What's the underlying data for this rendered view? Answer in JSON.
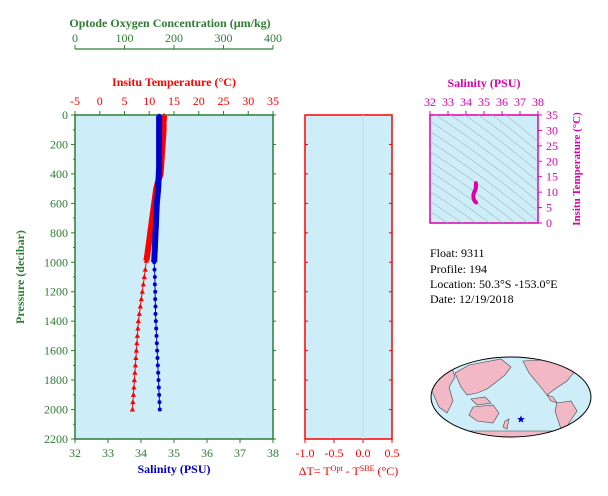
{
  "colors": {
    "green": "#2e7d32",
    "red": "#ff0000",
    "blue": "#0000cc",
    "magenta": "#dd00aa",
    "panel": "#cdeef8",
    "land": "#f2b8c6"
  },
  "chart_data": [
    {
      "type": "line",
      "panel": "main-profile",
      "top_axis_oxygen": {
        "label": "Optode Oxygen Concentration (µm/kg)",
        "range": [
          0,
          400
        ],
        "ticks": [
          "0",
          "100",
          "200",
          "300",
          "400"
        ]
      },
      "top_axis_temperature": {
        "label": "Insitu Temperature (°C)",
        "range": [
          -5,
          35
        ],
        "ticks": [
          "-5",
          "0",
          "5",
          "10",
          "15",
          "20",
          "25",
          "30",
          "35"
        ]
      },
      "bottom_axis_salinity": {
        "label": "Salinity (PSU)",
        "range": [
          32,
          38
        ],
        "ticks": [
          "32",
          "33",
          "34",
          "35",
          "36",
          "37",
          "38"
        ]
      },
      "y_axis": {
        "label": "Pressure (decibar)",
        "range": [
          0,
          2200
        ],
        "inverted": true,
        "ticks": [
          "0",
          "200",
          "400",
          "600",
          "800",
          "1000",
          "1200",
          "1400",
          "1600",
          "1800",
          "2000",
          "2200"
        ]
      },
      "series": [
        {
          "variable": "temperature",
          "color": "#ff0000",
          "points": [
            [
              13.0,
              5
            ],
            [
              12.9,
              50
            ],
            [
              12.9,
              100
            ],
            [
              12.8,
              150
            ],
            [
              12.7,
              200
            ],
            [
              12.6,
              250
            ],
            [
              12.5,
              300
            ],
            [
              12.4,
              350
            ],
            [
              12.3,
              400
            ],
            [
              12.0,
              430
            ],
            [
              11.7,
              460
            ],
            [
              11.4,
              500
            ],
            [
              11.2,
              550
            ],
            [
              11.0,
              600
            ],
            [
              10.8,
              650
            ],
            [
              10.6,
              700
            ],
            [
              10.4,
              750
            ],
            [
              10.2,
              800
            ],
            [
              10.0,
              850
            ],
            [
              9.8,
              900
            ],
            [
              9.6,
              950
            ],
            [
              9.4,
              990
            ],
            [
              9.2,
              1050
            ],
            [
              9.0,
              1100
            ],
            [
              8.8,
              1150
            ],
            [
              8.6,
              1200
            ],
            [
              8.4,
              1250
            ],
            [
              8.2,
              1300
            ],
            [
              8.0,
              1350
            ],
            [
              7.8,
              1400
            ],
            [
              7.7,
              1450
            ],
            [
              7.6,
              1500
            ],
            [
              7.5,
              1550
            ],
            [
              7.4,
              1600
            ],
            [
              7.3,
              1650
            ],
            [
              7.2,
              1700
            ],
            [
              7.1,
              1750
            ],
            [
              7.0,
              1800
            ],
            [
              6.9,
              1850
            ],
            [
              6.8,
              1900
            ],
            [
              6.7,
              1950
            ],
            [
              6.6,
              2000
            ]
          ]
        },
        {
          "variable": "salinity",
          "color": "#0000cc",
          "points": [
            [
              34.55,
              5
            ],
            [
              34.55,
              50
            ],
            [
              34.55,
              100
            ],
            [
              34.55,
              150
            ],
            [
              34.55,
              200
            ],
            [
              34.55,
              250
            ],
            [
              34.55,
              300
            ],
            [
              34.55,
              350
            ],
            [
              34.54,
              400
            ],
            [
              34.53,
              450
            ],
            [
              34.52,
              500
            ],
            [
              34.5,
              550
            ],
            [
              34.48,
              600
            ],
            [
              34.47,
              650
            ],
            [
              34.46,
              700
            ],
            [
              34.45,
              750
            ],
            [
              34.44,
              800
            ],
            [
              34.43,
              850
            ],
            [
              34.42,
              900
            ],
            [
              34.41,
              950
            ],
            [
              34.4,
              1000
            ],
            [
              34.41,
              1050
            ],
            [
              34.42,
              1100
            ],
            [
              34.42,
              1150
            ],
            [
              34.43,
              1200
            ],
            [
              34.43,
              1250
            ],
            [
              34.44,
              1300
            ],
            [
              34.44,
              1350
            ],
            [
              34.45,
              1400
            ],
            [
              34.46,
              1450
            ],
            [
              34.47,
              1500
            ],
            [
              34.48,
              1550
            ],
            [
              34.49,
              1600
            ],
            [
              34.5,
              1650
            ],
            [
              34.51,
              1700
            ],
            [
              34.52,
              1750
            ],
            [
              34.53,
              1800
            ],
            [
              34.54,
              1850
            ],
            [
              34.55,
              1900
            ],
            [
              34.56,
              1950
            ],
            [
              34.57,
              2000
            ]
          ]
        }
      ]
    },
    {
      "type": "line",
      "panel": "delta-t",
      "x_axis": {
        "label_prefix": "ΔT= T",
        "label_sup1": "Opt",
        "label_mid": " - T",
        "label_sup2": "SBE",
        "label_suffix": " (°C)",
        "range": [
          -1.0,
          0.5
        ],
        "ticks": [
          "-1.0",
          "-0.5",
          "0.0",
          "0.5"
        ]
      },
      "series": []
    },
    {
      "type": "scatter",
      "panel": "ts-diagram",
      "x_axis": {
        "label": "Salinity (PSU)",
        "range": [
          32,
          38
        ],
        "ticks": [
          "32",
          "33",
          "34",
          "35",
          "36",
          "37",
          "38"
        ]
      },
      "y_axis": {
        "label": "Insitu Temperature (°C)",
        "range": [
          0,
          35
        ],
        "ticks": [
          "0",
          "5",
          "10",
          "15",
          "20",
          "25",
          "30",
          "35"
        ]
      },
      "series": [
        {
          "color": "#dd00aa",
          "points": [
            [
              34.57,
              6.6
            ],
            [
              34.5,
              7.0
            ],
            [
              34.45,
              7.5
            ],
            [
              34.42,
              8.0
            ],
            [
              34.41,
              8.5
            ],
            [
              34.41,
              9.0
            ],
            [
              34.43,
              9.5
            ],
            [
              34.46,
              10.0
            ],
            [
              34.5,
              10.5
            ],
            [
              34.53,
              11.0
            ],
            [
              34.55,
              11.5
            ],
            [
              34.55,
              12.0
            ],
            [
              34.55,
              12.5
            ],
            [
              34.55,
              13.0
            ]
          ]
        }
      ]
    }
  ],
  "info": {
    "float": "Float:  9311",
    "profile": "Profile:  194",
    "location": "Location:  50.3°S  -153.0°E",
    "date": "Date:  12/19/2018"
  },
  "map": {
    "float_position": {
      "lat": -50.3,
      "lon": -153.0
    },
    "marker_color": "#0000cc"
  }
}
